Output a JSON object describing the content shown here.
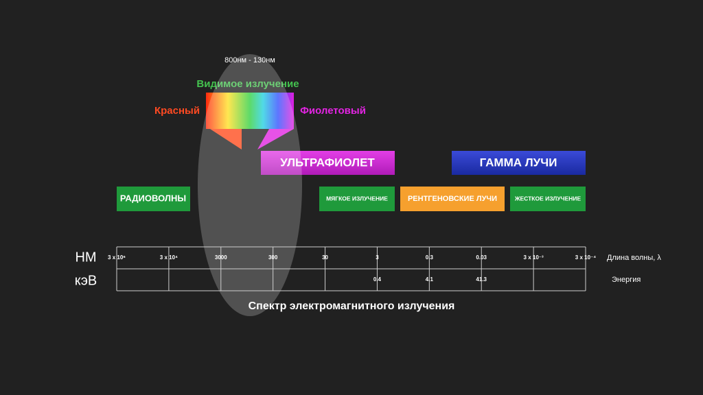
{
  "visible": {
    "range": "800нм - 130нм",
    "title": "Видимое излучение",
    "red": "Красный",
    "violet": "Фиолетовый"
  },
  "bands": {
    "ultraviolet": "УЛЬТРАФИОЛЕТ",
    "gamma": "ГАММА ЛУЧИ",
    "radio": "РАДИОВОЛНЫ",
    "soft": "МЯГКОЕ ИЗЛУЧЕНИЕ",
    "xray": "РЕНТГЕНОВСКИЕ ЛУЧИ",
    "hard": "ЖЕСТКОЕ ИЗЛУЧЕНИЕ"
  },
  "scale": {
    "units": [
      "НМ",
      "кэВ"
    ],
    "wavelength": [
      "3 x 10⁶",
      "3 x 10⁴",
      "3000",
      "300",
      "30",
      "3",
      "0.3",
      "0.03",
      "3 x 10⁻³",
      "3 x 10⁻⁴"
    ],
    "energy": [
      "0.4",
      "4.1",
      "41.3"
    ],
    "wavelength_caption": "Длина волны, λ",
    "energy_caption": "Энергия"
  },
  "caption": "Спектр электромагнитного излучения"
}
